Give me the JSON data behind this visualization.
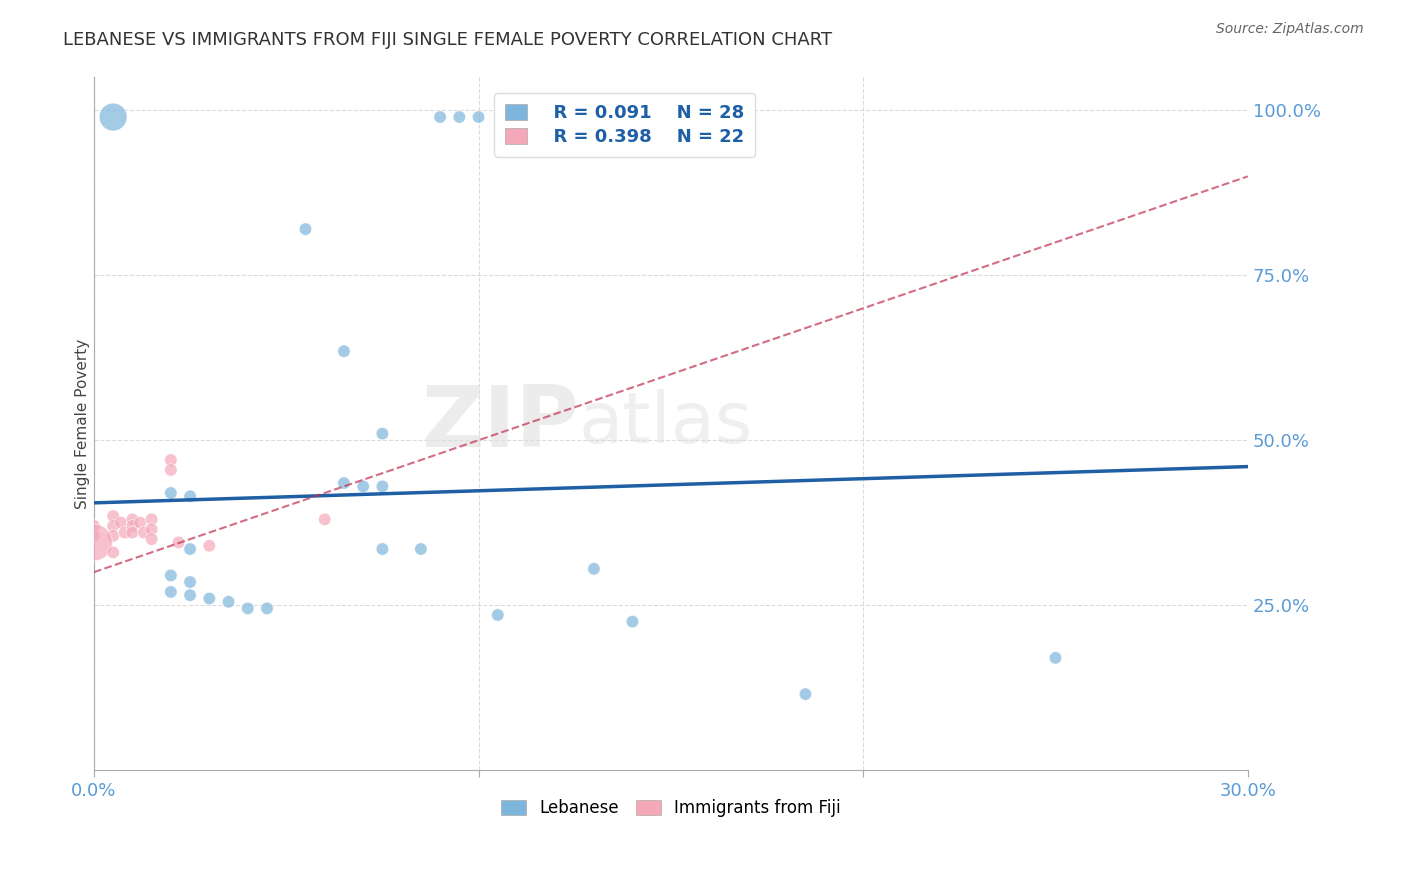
{
  "title": "LEBANESE VS IMMIGRANTS FROM FIJI SINGLE FEMALE POVERTY CORRELATION CHART",
  "source_text": "Source: ZipAtlas.com",
  "ylabel": "Single Female Poverty",
  "xlim": [
    0.0,
    0.3
  ],
  "ylim": [
    0.0,
    1.05
  ],
  "xtick_values": [
    0.0,
    0.1,
    0.2,
    0.3
  ],
  "ytick_values": [
    0.25,
    0.5,
    0.75,
    1.0
  ],
  "legend_blue_label": "Lebanese",
  "legend_pink_label": "Immigrants from Fiji",
  "r_blue": "R = 0.091",
  "n_blue": "N = 28",
  "r_pink": "R = 0.398",
  "n_pink": "N = 22",
  "blue_color": "#7EB5DC",
  "pink_color": "#F4A8B8",
  "blue_line_color": "#1F5FA6",
  "pink_line_color": "#C03050",
  "blue_scatter": [
    [
      0.005,
      0.99
    ],
    [
      0.09,
      0.99
    ],
    [
      0.095,
      0.99
    ],
    [
      0.1,
      0.99
    ],
    [
      0.055,
      0.82
    ],
    [
      0.065,
      0.635
    ],
    [
      0.075,
      0.51
    ],
    [
      0.065,
      0.435
    ],
    [
      0.07,
      0.43
    ],
    [
      0.075,
      0.43
    ],
    [
      0.02,
      0.42
    ],
    [
      0.025,
      0.415
    ],
    [
      0.025,
      0.335
    ],
    [
      0.075,
      0.335
    ],
    [
      0.085,
      0.335
    ],
    [
      0.13,
      0.305
    ],
    [
      0.02,
      0.295
    ],
    [
      0.025,
      0.285
    ],
    [
      0.02,
      0.27
    ],
    [
      0.025,
      0.265
    ],
    [
      0.03,
      0.26
    ],
    [
      0.035,
      0.255
    ],
    [
      0.04,
      0.245
    ],
    [
      0.045,
      0.245
    ],
    [
      0.105,
      0.235
    ],
    [
      0.14,
      0.225
    ],
    [
      0.25,
      0.17
    ],
    [
      0.185,
      0.115
    ]
  ],
  "blue_scatter_sizes": [
    400,
    80,
    80,
    80,
    80,
    80,
    80,
    80,
    80,
    80,
    80,
    80,
    80,
    80,
    80,
    80,
    80,
    80,
    80,
    80,
    80,
    80,
    80,
    80,
    80,
    80,
    80,
    80
  ],
  "pink_scatter": [
    [
      0.0,
      0.37
    ],
    [
      0.0,
      0.355
    ],
    [
      0.005,
      0.385
    ],
    [
      0.005,
      0.37
    ],
    [
      0.005,
      0.355
    ],
    [
      0.007,
      0.375
    ],
    [
      0.008,
      0.36
    ],
    [
      0.01,
      0.38
    ],
    [
      0.01,
      0.37
    ],
    [
      0.01,
      0.36
    ],
    [
      0.012,
      0.375
    ],
    [
      0.013,
      0.36
    ],
    [
      0.015,
      0.38
    ],
    [
      0.015,
      0.365
    ],
    [
      0.015,
      0.35
    ],
    [
      0.02,
      0.47
    ],
    [
      0.02,
      0.455
    ],
    [
      0.022,
      0.345
    ],
    [
      0.03,
      0.34
    ],
    [
      0.06,
      0.38
    ],
    [
      0.0,
      0.345
    ],
    [
      0.005,
      0.33
    ]
  ],
  "pink_scatter_sizes": [
    80,
    80,
    80,
    80,
    80,
    80,
    80,
    80,
    80,
    80,
    80,
    80,
    80,
    80,
    80,
    80,
    80,
    80,
    80,
    80,
    700,
    80
  ],
  "blue_line_x0": 0.0,
  "blue_line_y0": 0.405,
  "blue_line_x1": 0.3,
  "blue_line_y1": 0.46,
  "pink_line_x0": 0.0,
  "pink_line_y0": 0.3,
  "pink_line_x1": 0.3,
  "pink_line_y1": 0.9
}
